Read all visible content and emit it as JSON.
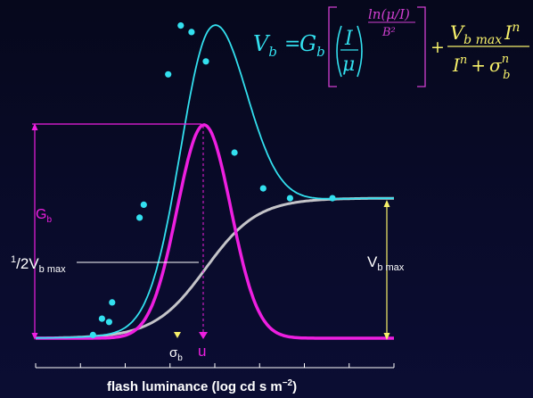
{
  "chart_data": {
    "type": "line",
    "title": "",
    "xlabel_main": "flash luminance (log cd s m",
    "xlabel_exp": "−2",
    "xlabel_close": ")",
    "ylabel": "",
    "x_ticks": 9,
    "series": [
      {
        "name": "",
        "role": "fit",
        "color": "#33e0ef"
      },
      {
        "name": "",
        "role": "gaussian",
        "color": "#ee1fe0"
      },
      {
        "name": "",
        "role": "saturating",
        "color": "#c4c4c8"
      }
    ],
    "points": [
      {
        "x": 0.96,
        "y": 0.01
      },
      {
        "x": 1.11,
        "y": 0.06
      },
      {
        "x": 1.23,
        "y": 0.05
      },
      {
        "x": 1.28,
        "y": 0.11
      },
      {
        "x": 1.74,
        "y": 0.37
      },
      {
        "x": 1.81,
        "y": 0.41
      },
      {
        "x": 2.22,
        "y": 0.81
      },
      {
        "x": 2.43,
        "y": 0.96
      },
      {
        "x": 2.61,
        "y": 0.94
      },
      {
        "x": 2.85,
        "y": 0.85
      },
      {
        "x": 3.33,
        "y": 0.57
      },
      {
        "x": 3.81,
        "y": 0.46
      },
      {
        "x": 4.26,
        "y": 0.43
      },
      {
        "x": 4.97,
        "y": 0.43
      }
    ],
    "annotations": {
      "gb_label": "G",
      "gb_sub": "b",
      "half_vb_sup": "1",
      "half_vb_mid": "/",
      "half_vb_main": "2",
      "half_vb_v": "V",
      "half_vb_sub": "b max",
      "vb_main": "V",
      "vb_sub": "b max",
      "sigma_main": "σ",
      "sigma_sub": "b",
      "mu_label": "u"
    }
  },
  "formula": {
    "vb": "V",
    "vb_sub": "b",
    "eq": "=",
    "gb": "G",
    "gb_sub": "b",
    "frac1_num": "I",
    "frac1_den": "μ",
    "exp_num": "ln(μ/I)",
    "exp_den": "B²",
    "plus": "+",
    "frac2_num_v": "V",
    "frac2_num_sub": "b max",
    "frac2_num_i": "I",
    "frac2_num_exp": "n",
    "frac2_den_i": "I",
    "frac2_den_exp": "n",
    "frac2_den_plus": "+",
    "frac2_den_sigma": "σ",
    "frac2_den_sigma_sub": "b",
    "frac2_den_sigma_exp": "n"
  },
  "colors": {
    "cyan": "#33e0ef",
    "magenta": "#ee1fe0",
    "gray": "#c4c4c8",
    "yellow": "#f6f06a",
    "formula_magenta": "#d03fd0",
    "white": "#ffffff"
  }
}
